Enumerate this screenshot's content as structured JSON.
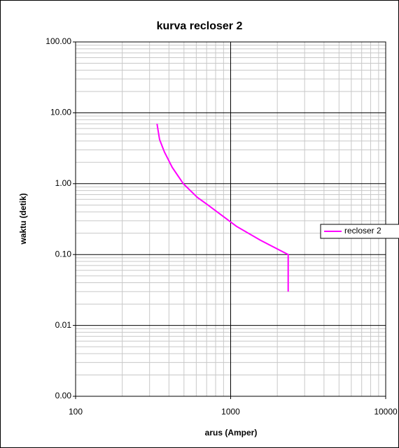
{
  "chart_data": {
    "type": "line",
    "title": "kurva recloser 2",
    "x_label": "arus (Amper)",
    "y_label": "waktu (detik)",
    "x_log": true,
    "y_log": true,
    "grid": true,
    "legend": "right",
    "xlim": [
      100,
      10000
    ],
    "xticks": [
      100,
      1000,
      10000
    ],
    "ylim": [
      0.001,
      100
    ],
    "yticks": [
      {
        "value": 0.001,
        "label": "0.00"
      },
      {
        "value": 0.01,
        "label": "0.01"
      },
      {
        "value": 0.1,
        "label": "0.10"
      },
      {
        "value": 1,
        "label": "1.00"
      },
      {
        "value": 10,
        "label": "10.00"
      },
      {
        "value": 100,
        "label": "100.00"
      }
    ],
    "series": [
      {
        "name": "recloser 2",
        "color": "#ff00ff",
        "x": [
          335,
          348,
          374,
          420,
          495,
          610,
          705,
          1090,
          1550,
          2350,
          2350
        ],
        "values": [
          7,
          4.2,
          2.8,
          1.7,
          1.0,
          0.64,
          0.51,
          0.25,
          0.16,
          0.1,
          0.03
        ]
      }
    ]
  }
}
